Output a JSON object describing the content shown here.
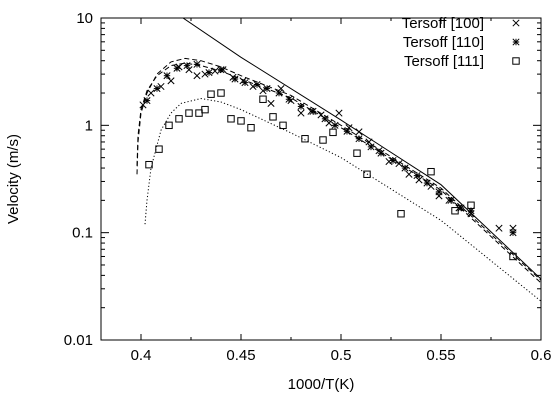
{
  "chart_data": {
    "type": "scatter",
    "xlabel": "1000/T(K)",
    "ylabel": "Velocity (m/s)",
    "xlim": [
      0.38,
      0.6
    ],
    "ylim": [
      0.01,
      10
    ],
    "yscale": "log",
    "grid": false,
    "legend_position": "top-right",
    "xticks": [
      {
        "value": 0.4,
        "label": "0.4"
      },
      {
        "value": 0.45,
        "label": "0.45"
      },
      {
        "value": 0.5,
        "label": "0.5"
      },
      {
        "value": 0.55,
        "label": "0.55"
      },
      {
        "value": 0.6,
        "label": "0.6"
      }
    ],
    "yticks": [
      {
        "value": 0.01,
        "label": "0.01"
      },
      {
        "value": 0.1,
        "label": "0.1"
      },
      {
        "value": 1,
        "label": "1"
      },
      {
        "value": 10,
        "label": "10"
      }
    ],
    "series": [
      {
        "name": "Tersoff [100]",
        "marker": "x",
        "points": [
          [
            0.401,
            1.55
          ],
          [
            0.405,
            2.0
          ],
          [
            0.41,
            2.3
          ],
          [
            0.415,
            2.6
          ],
          [
            0.419,
            3.5
          ],
          [
            0.424,
            3.3
          ],
          [
            0.428,
            2.9
          ],
          [
            0.432,
            3.0
          ],
          [
            0.437,
            3.2
          ],
          [
            0.441,
            3.3
          ],
          [
            0.446,
            2.8
          ],
          [
            0.451,
            2.6
          ],
          [
            0.456,
            2.3
          ],
          [
            0.461,
            2.1
          ],
          [
            0.465,
            1.6
          ],
          [
            0.47,
            2.2
          ],
          [
            0.475,
            1.7
          ],
          [
            0.48,
            1.3
          ],
          [
            0.485,
            1.35
          ],
          [
            0.49,
            1.25
          ],
          [
            0.494,
            1.05
          ],
          [
            0.499,
            1.3
          ],
          [
            0.504,
            0.95
          ],
          [
            0.509,
            0.87
          ],
          [
            0.514,
            0.7
          ],
          [
            0.519,
            0.58
          ],
          [
            0.524,
            0.46
          ],
          [
            0.529,
            0.44
          ],
          [
            0.534,
            0.35
          ],
          [
            0.539,
            0.31
          ],
          [
            0.545,
            0.27
          ],
          [
            0.549,
            0.22
          ],
          [
            0.554,
            0.2
          ],
          [
            0.559,
            0.17
          ],
          [
            0.565,
            0.15
          ],
          [
            0.579,
            0.11
          ],
          [
            0.586,
            0.11
          ]
        ]
      },
      {
        "name": "Tersoff [110]",
        "marker": "star",
        "points": [
          [
            0.403,
            1.7
          ],
          [
            0.408,
            2.2
          ],
          [
            0.413,
            2.9
          ],
          [
            0.418,
            3.4
          ],
          [
            0.423,
            3.6
          ],
          [
            0.428,
            3.7
          ],
          [
            0.434,
            3.1
          ],
          [
            0.44,
            3.3
          ],
          [
            0.447,
            2.7
          ],
          [
            0.452,
            2.5
          ],
          [
            0.458,
            2.4
          ],
          [
            0.463,
            2.2
          ],
          [
            0.469,
            2.0
          ],
          [
            0.474,
            1.75
          ],
          [
            0.48,
            1.5
          ],
          [
            0.486,
            1.35
          ],
          [
            0.492,
            1.15
          ],
          [
            0.497,
            1.0
          ],
          [
            0.503,
            0.88
          ],
          [
            0.509,
            0.75
          ],
          [
            0.515,
            0.63
          ],
          [
            0.52,
            0.55
          ],
          [
            0.526,
            0.47
          ],
          [
            0.532,
            0.4
          ],
          [
            0.538,
            0.34
          ],
          [
            0.543,
            0.29
          ],
          [
            0.549,
            0.24
          ],
          [
            0.555,
            0.2
          ],
          [
            0.56,
            0.17
          ],
          [
            0.565,
            0.16
          ],
          [
            0.586,
            0.1
          ]
        ]
      },
      {
        "name": "Tersoff [111]",
        "marker": "square",
        "points": [
          [
            0.404,
            0.43
          ],
          [
            0.409,
            0.6
          ],
          [
            0.414,
            1.0
          ],
          [
            0.419,
            1.15
          ],
          [
            0.424,
            1.3
          ],
          [
            0.429,
            1.3
          ],
          [
            0.432,
            1.4
          ],
          [
            0.435,
            1.95
          ],
          [
            0.44,
            2.0
          ],
          [
            0.445,
            1.15
          ],
          [
            0.45,
            1.1
          ],
          [
            0.455,
            0.95
          ],
          [
            0.461,
            1.75
          ],
          [
            0.466,
            1.2
          ],
          [
            0.471,
            1.0
          ],
          [
            0.482,
            0.75
          ],
          [
            0.491,
            0.73
          ],
          [
            0.496,
            0.86
          ],
          [
            0.508,
            0.55
          ],
          [
            0.513,
            0.35
          ],
          [
            0.53,
            0.15
          ],
          [
            0.545,
            0.37
          ],
          [
            0.557,
            0.16
          ],
          [
            0.565,
            0.18
          ],
          [
            0.586,
            0.06
          ]
        ]
      }
    ],
    "fit_lines": [
      {
        "style": "solid",
        "points": [
          [
            0.421,
            10.0
          ],
          [
            0.45,
            4.3
          ],
          [
            0.5,
            1.12
          ],
          [
            0.55,
            0.28
          ],
          [
            0.6,
            0.037
          ]
        ]
      },
      {
        "style": "dashed",
        "points": [
          [
            0.398,
            0.35
          ],
          [
            0.3985,
            0.7
          ],
          [
            0.4,
            1.3
          ],
          [
            0.403,
            2.0
          ],
          [
            0.408,
            3.0
          ],
          [
            0.415,
            3.9
          ],
          [
            0.422,
            4.2
          ],
          [
            0.43,
            4.0
          ],
          [
            0.44,
            3.5
          ],
          [
            0.45,
            2.9
          ],
          [
            0.475,
            1.9
          ],
          [
            0.5,
            1.0
          ],
          [
            0.55,
            0.26
          ],
          [
            0.6,
            0.036
          ]
        ]
      },
      {
        "style": "dashed",
        "points": [
          [
            0.398,
            0.42
          ],
          [
            0.3985,
            0.8
          ],
          [
            0.4,
            1.4
          ],
          [
            0.403,
            2.1
          ],
          [
            0.408,
            2.9
          ],
          [
            0.415,
            3.6
          ],
          [
            0.422,
            3.8
          ],
          [
            0.43,
            3.6
          ],
          [
            0.44,
            3.2
          ],
          [
            0.45,
            2.7
          ],
          [
            0.475,
            1.8
          ],
          [
            0.5,
            0.95
          ],
          [
            0.55,
            0.25
          ],
          [
            0.6,
            0.034
          ]
        ]
      },
      {
        "style": "dotted",
        "points": [
          [
            0.402,
            0.12
          ],
          [
            0.403,
            0.2
          ],
          [
            0.405,
            0.4
          ],
          [
            0.41,
            0.9
          ],
          [
            0.415,
            1.3
          ],
          [
            0.42,
            1.6
          ],
          [
            0.43,
            1.78
          ],
          [
            0.44,
            1.65
          ],
          [
            0.45,
            1.4
          ],
          [
            0.475,
            0.85
          ],
          [
            0.5,
            0.5
          ],
          [
            0.55,
            0.13
          ],
          [
            0.6,
            0.023
          ]
        ]
      }
    ]
  }
}
